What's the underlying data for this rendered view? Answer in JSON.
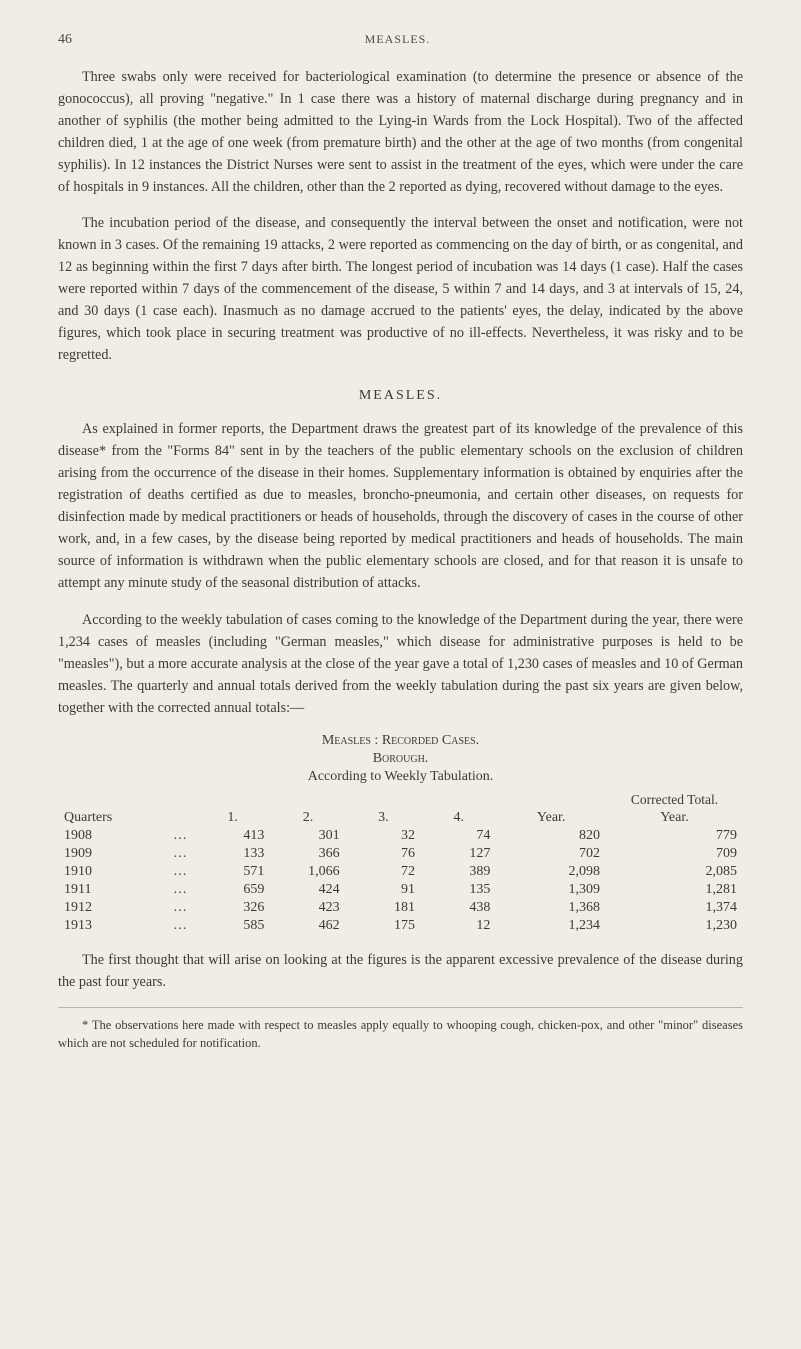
{
  "header": {
    "page_number": "46",
    "running_head": "MEASLES."
  },
  "paragraphs": {
    "p1": "Three swabs only were received for bacteriological examination (to determine the presence or absence of the gonococcus), all proving \"negative.\" In 1 case there was a history of maternal discharge during pregnancy and in another of syphilis (the mother being admitted to the Lying-in Wards from the Lock Hospital). Two of the affected children died, 1 at the age of one week (from premature birth) and the other at the age of two months (from congenital syphilis). In 12 instances the District Nurses were sent to assist in the treatment of the eyes, which were under the care of hospitals in 9 instances. All the children, other than the 2 reported as dying, recovered without damage to the eyes.",
    "p2": "The incubation period of the disease, and consequently the interval between the onset and notification, were not known in 3 cases. Of the remaining 19 attacks, 2 were reported as commencing on the day of birth, or as congenital, and 12 as beginning within the first 7 days after birth. The longest period of incubation was 14 days (1 case). Half the cases were reported within 7 days of the commencement of the disease, 5 within 7 and 14 days, and 3 at intervals of 15, 24, and 30 days (1 case each). Inasmuch as no damage accrued to the patients' eyes, the delay, indicated by the above figures, which took place in securing treatment was productive of no ill-effects. Nevertheless, it was risky and to be regretted.",
    "section_title": "MEASLES.",
    "p3": "As explained in former reports, the Department draws the greatest part of its knowledge of the prevalence of this disease* from the \"Forms 84\" sent in by the teachers of the public elementary schools on the exclusion of children arising from the occurrence of the disease in their homes. Supplementary information is obtained by enquiries after the registration of deaths certified as due to measles, broncho-pneumonia, and certain other diseases, on requests for disinfection made by medical practitioners or heads of households, through the discovery of cases in the course of other work, and, in a few cases, by the disease being reported by medical practitioners and heads of households. The main source of information is withdrawn when the public elementary schools are closed, and for that reason it is unsafe to attempt any minute study of the seasonal distribution of attacks.",
    "p4": "According to the weekly tabulation of cases coming to the knowledge of the Department during the year, there were 1,234 cases of measles (including \"German measles,\" which disease for administrative purposes is held to be \"measles\"), but a more accurate analysis at the close of the year gave a total of 1,230 cases of measles and 10 of German measles. The quarterly and annual totals derived from the weekly tabulation during the past six years are given below, together with the corrected annual totals:—",
    "p5": "The first thought that will arise on looking at the figures is the apparent excessive prevalence of the disease during the past four years.",
    "footnote": "* The observations here made with respect to measles apply equally to whooping cough, chicken-pox, and other \"minor\" diseases which are not scheduled for notification."
  },
  "table": {
    "title": "Measles : Recorded Cases.",
    "subtitle": "Borough.",
    "desc": "According to Weekly Tabulation.",
    "quarters_label": "Quarters",
    "col_headers": [
      "1.",
      "2.",
      "3.",
      "4."
    ],
    "year_head": "Year.",
    "corrected_head": "Corrected Total.",
    "corrected_sub": "Year.",
    "dots": "…",
    "rows": [
      {
        "year": "1908",
        "q1": "413",
        "q2": "301",
        "q3": "32",
        "q4": "74",
        "total": "820",
        "corrected": "779",
        "bold": false
      },
      {
        "year": "1909",
        "q1": "133",
        "q2": "366",
        "q3": "76",
        "q4": "127",
        "total": "702",
        "corrected": "709",
        "bold": false
      },
      {
        "year": "1910",
        "q1": "571",
        "q2": "1,066",
        "q3": "72",
        "q4": "389",
        "total": "2,098",
        "corrected": "2,085",
        "bold": false
      },
      {
        "year": "1911",
        "q1": "659",
        "q2": "424",
        "q3": "91",
        "q4": "135",
        "total": "1,309",
        "corrected": "1,281",
        "bold": false
      },
      {
        "year": "1912",
        "q1": "326",
        "q2": "423",
        "q3": "181",
        "q4": "438",
        "total": "1,368",
        "corrected": "1,374",
        "bold": false
      },
      {
        "year": "1913",
        "q1": "585",
        "q2": "462",
        "q3": "175",
        "q4": "12",
        "total": "1,234",
        "corrected": "1,230",
        "bold": true
      }
    ],
    "column_widths": [
      "12%",
      "8%",
      "11%",
      "11%",
      "11%",
      "11%",
      "16%",
      "20%"
    ],
    "font_size": 14,
    "text_color": "#3a3a38"
  },
  "colors": {
    "background": "#f0ede4",
    "text": "#3a3a38",
    "rule": "#b8b6ae"
  }
}
